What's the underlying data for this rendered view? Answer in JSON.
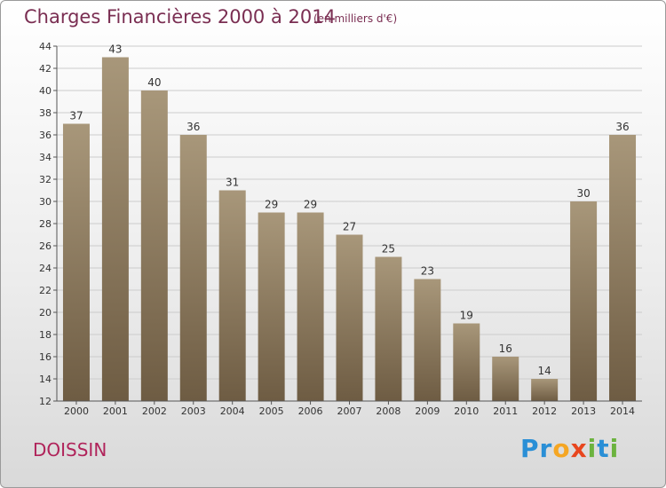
{
  "chart_data": {
    "type": "bar",
    "title": "Charges Financières 2000 à 2014",
    "subtitle": "(en milliers d'€)",
    "categories": [
      "2000",
      "2001",
      "2002",
      "2003",
      "2004",
      "2005",
      "2006",
      "2007",
      "2008",
      "2009",
      "2010",
      "2011",
      "2012",
      "2013",
      "2014"
    ],
    "values": [
      37,
      43,
      40,
      36,
      31,
      29,
      29,
      27,
      25,
      23,
      19,
      16,
      14,
      30,
      36
    ],
    "ylim": [
      12,
      44
    ],
    "yticks": [
      12,
      14,
      16,
      18,
      20,
      22,
      24,
      26,
      28,
      30,
      32,
      34,
      36,
      38,
      40,
      42,
      44
    ],
    "xlabel": "",
    "ylabel": "",
    "grid": true,
    "colors": {
      "bar_light": "#a8977a",
      "bar_dark": "#6e5c43",
      "grid": "#cccccc"
    }
  },
  "commune": "DOISSIN",
  "logo": {
    "letters": [
      {
        "ch": "P",
        "color": "#2a8fd6"
      },
      {
        "ch": "r",
        "color": "#2a8fd6"
      },
      {
        "ch": "o",
        "color": "#f5a623"
      },
      {
        "ch": "x",
        "color": "#e8461e"
      },
      {
        "ch": "i",
        "color": "#6cb33f"
      },
      {
        "ch": "t",
        "color": "#2a8fd6"
      },
      {
        "ch": "i",
        "color": "#6cb33f"
      }
    ]
  }
}
